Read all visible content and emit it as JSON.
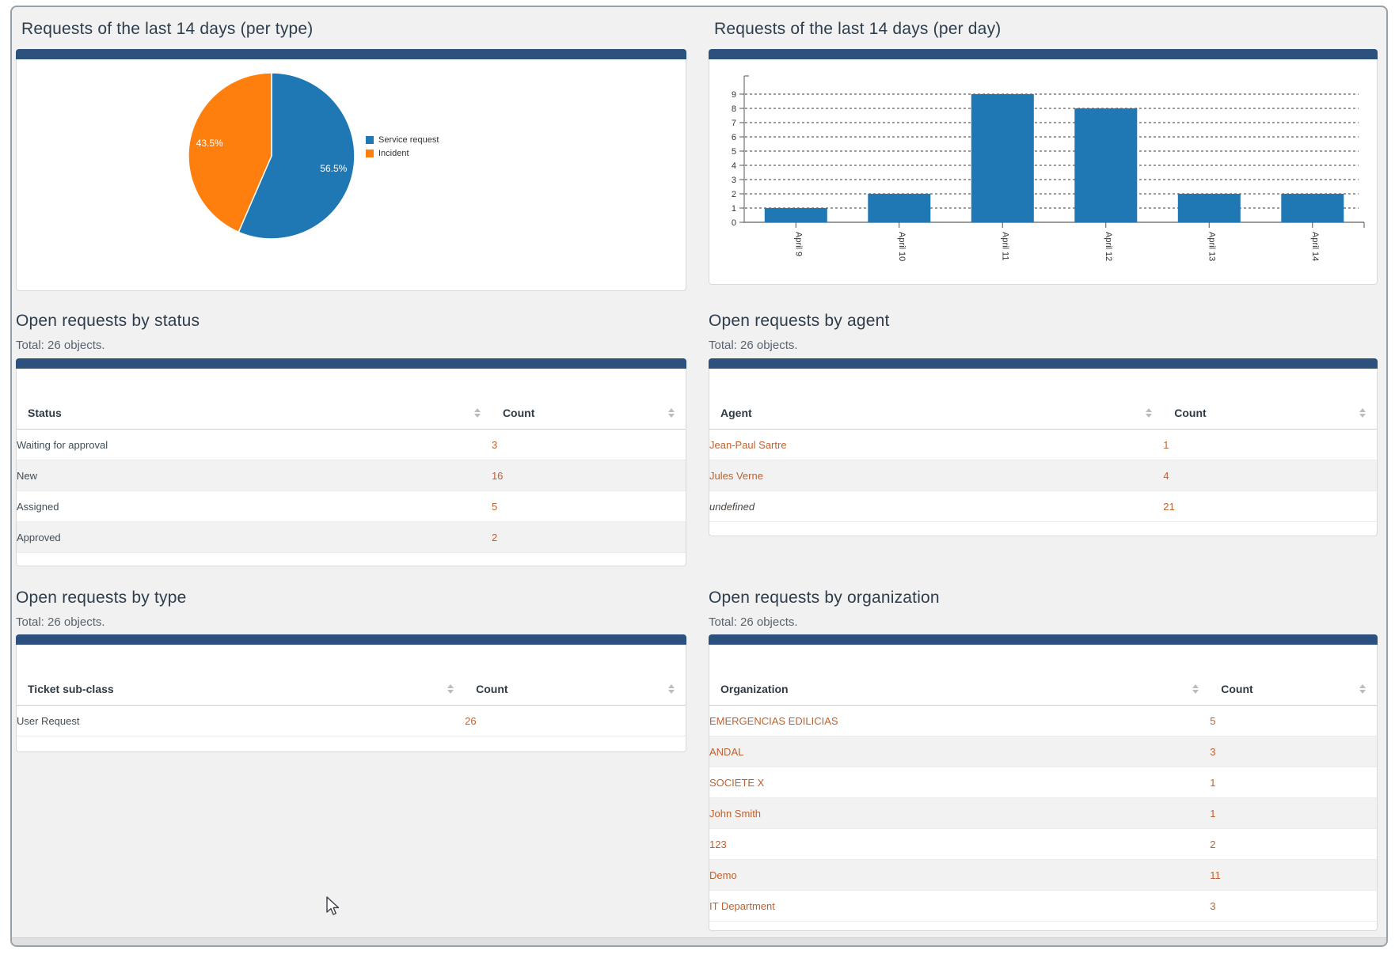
{
  "colors": {
    "panel_header_bar": "#2c517e",
    "pie_blue": "#1f77b4",
    "pie_orange": "#ff7f0e",
    "bar_fill": "#1f77b4",
    "link_orange": "#c2602c",
    "page_bg": "#f1f1f2"
  },
  "sections": {
    "per_type": {
      "title": "Requests of the last 14 days (per type)"
    },
    "per_day": {
      "title": "Requests of the last 14 days (per day)"
    },
    "by_status": {
      "title": "Open requests by status",
      "total": "Total: 26 objects."
    },
    "by_agent": {
      "title": "Open requests by agent",
      "total": "Total: 26 objects."
    },
    "by_type": {
      "title": "Open requests by type",
      "total": "Total: 26 objects."
    },
    "by_organization": {
      "title": "Open requests by organization",
      "total": "Total: 26 objects."
    }
  },
  "tables": {
    "by_status": {
      "columns": [
        "Status",
        "Count"
      ],
      "rows": [
        {
          "label": "Waiting for approval",
          "count": "3",
          "label_link": false,
          "italic": false
        },
        {
          "label": "New",
          "count": "16",
          "label_link": false,
          "italic": false
        },
        {
          "label": "Assigned",
          "count": "5",
          "label_link": false,
          "italic": false
        },
        {
          "label": "Approved",
          "count": "2",
          "label_link": false,
          "italic": false
        }
      ]
    },
    "by_agent": {
      "columns": [
        "Agent",
        "Count"
      ],
      "rows": [
        {
          "label": "Jean-Paul Sartre",
          "count": "1",
          "label_link": true,
          "italic": false
        },
        {
          "label": "Jules Verne",
          "count": "4",
          "label_link": true,
          "italic": false
        },
        {
          "label": "undefined",
          "count": "21",
          "label_link": false,
          "italic": true
        }
      ]
    },
    "by_type": {
      "columns": [
        "Ticket sub-class",
        "Count"
      ],
      "rows": [
        {
          "label": "User Request",
          "count": "26",
          "label_link": false,
          "italic": false
        }
      ]
    },
    "by_organization": {
      "columns": [
        "Organization",
        "Count"
      ],
      "rows": [
        {
          "label": "EMERGENCIAS EDILICIAS",
          "count": "5",
          "label_link": true,
          "italic": false
        },
        {
          "label": "ANDAL",
          "count": "3",
          "label_link": true,
          "italic": false
        },
        {
          "label": "SOCIETE X",
          "count": "1",
          "label_link": true,
          "italic": false
        },
        {
          "label": "John Smith",
          "count": "1",
          "label_link": true,
          "italic": false
        },
        {
          "label": "123",
          "count": "2",
          "label_link": true,
          "italic": false
        },
        {
          "label": "Demo",
          "count": "11",
          "label_link": true,
          "italic": false
        },
        {
          "label": "IT Department",
          "count": "3",
          "label_link": true,
          "italic": false
        }
      ]
    }
  },
  "chart_data": [
    {
      "type": "pie",
      "title": "Requests of the last 14 days (per type)",
      "labels": [
        "Service request",
        "Incident"
      ],
      "values": [
        56.5,
        43.5
      ],
      "value_labels": [
        "56.5%",
        "43.5%"
      ],
      "colors": [
        "#1f77b4",
        "#ff7f0e"
      ],
      "legend_position": "right",
      "start_angle_deg": 0,
      "direction": "clockwise"
    },
    {
      "type": "bar",
      "title": "Requests of the last 14 days (per day)",
      "categories": [
        "April 9",
        "April 10",
        "April 11",
        "April 12",
        "April 13",
        "April 14"
      ],
      "values": [
        1,
        2,
        9,
        8,
        2,
        2
      ],
      "xlabel": "",
      "ylabel": "",
      "ylim": [
        0,
        9
      ],
      "yticks": [
        0,
        1,
        2,
        3,
        4,
        5,
        6,
        7,
        8,
        9
      ],
      "grid": "horizontal-dashed",
      "legend_position": "none",
      "bar_color": "#1f77b4"
    }
  ]
}
